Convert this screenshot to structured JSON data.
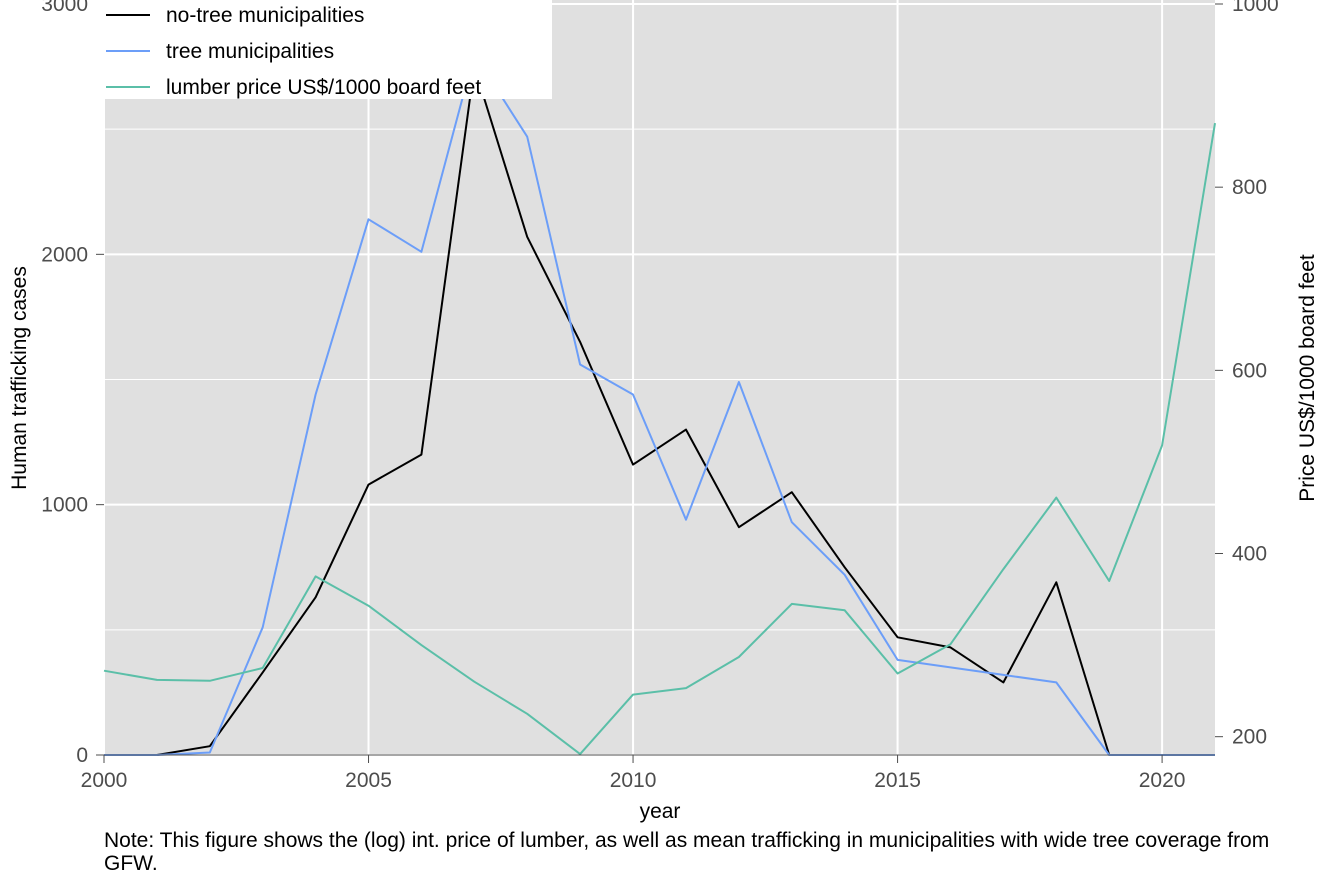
{
  "chart_data": {
    "type": "line",
    "xlabel": "year",
    "ylabel": "Human trafficking cases",
    "y2label": "Price US$/1000 board feet",
    "xlim": [
      2000,
      2021
    ],
    "ylim": [
      0,
      3000
    ],
    "y2lim": [
      180,
      1000
    ],
    "x_ticks": [
      "2000",
      "2005",
      "2010",
      "2015",
      "2020"
    ],
    "y_ticks": [
      "0",
      "1000",
      "2000",
      "3000"
    ],
    "y2_ticks": [
      "200",
      "400",
      "600",
      "800",
      "1000"
    ],
    "grid": true,
    "legend_position": "top-left",
    "x": [
      2000,
      2001,
      2002,
      2003,
      2004,
      2005,
      2006,
      2007,
      2008,
      2009,
      2010,
      2011,
      2012,
      2013,
      2014,
      2015,
      2016,
      2017,
      2018,
      2019,
      2020,
      2021
    ],
    "series": [
      {
        "name": "no-tree municipalities",
        "axis": "left",
        "color": "#000000",
        "values": [
          0,
          0,
          35,
          330,
          630,
          1080,
          1200,
          2750,
          2070,
          1650,
          1160,
          1300,
          910,
          1050,
          750,
          470,
          430,
          290,
          690,
          0,
          0,
          0
        ]
      },
      {
        "name": "tree municipalities",
        "axis": "left",
        "color": "#6c9ef8",
        "values": [
          0,
          0,
          10,
          510,
          1440,
          2140,
          2010,
          2800,
          2470,
          1560,
          1440,
          940,
          1490,
          930,
          720,
          380,
          350,
          320,
          290,
          0,
          0,
          0
        ]
      },
      {
        "name": "lumber price US$/1000 board feet",
        "axis": "right",
        "color": "#5bbfa8",
        "values": [
          272,
          262,
          261,
          275,
          375,
          343,
          300,
          260,
          225,
          181,
          246,
          253,
          287,
          345,
          338,
          269,
          301,
          383,
          461,
          370,
          518,
          870
        ]
      }
    ]
  },
  "note": "Note: This figure shows the (log) int. price of lumber, as well as mean trafficking in municipalities with wide tree coverage from GFW."
}
